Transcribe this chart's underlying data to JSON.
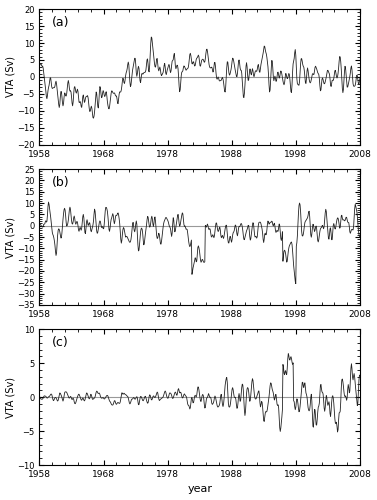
{
  "title": "",
  "xlabel": "year",
  "ylabel": "VTA (Sv)",
  "panel_labels": [
    "(a)",
    "(b)",
    "(c)"
  ],
  "x_start": 1958,
  "x_end": 2008,
  "x_ticks": [
    1958,
    1968,
    1978,
    1988,
    1998,
    2008
  ],
  "panel_a": {
    "ylim": [
      -20,
      20
    ],
    "yticks": [
      -20,
      -15,
      -10,
      -5,
      0,
      5,
      10,
      15,
      20
    ]
  },
  "panel_b": {
    "ylim": [
      -35,
      25
    ],
    "yticks": [
      -35,
      -30,
      -25,
      -20,
      -15,
      -10,
      -5,
      0,
      5,
      10,
      15,
      20,
      25
    ]
  },
  "panel_c": {
    "ylim": [
      -10,
      10
    ],
    "yticks": [
      -10,
      -5,
      0,
      5,
      10
    ]
  },
  "line_color": "#222222",
  "hline_color": "#999999",
  "background_color": "#ffffff",
  "line_width": 0.6,
  "n_points": 600
}
